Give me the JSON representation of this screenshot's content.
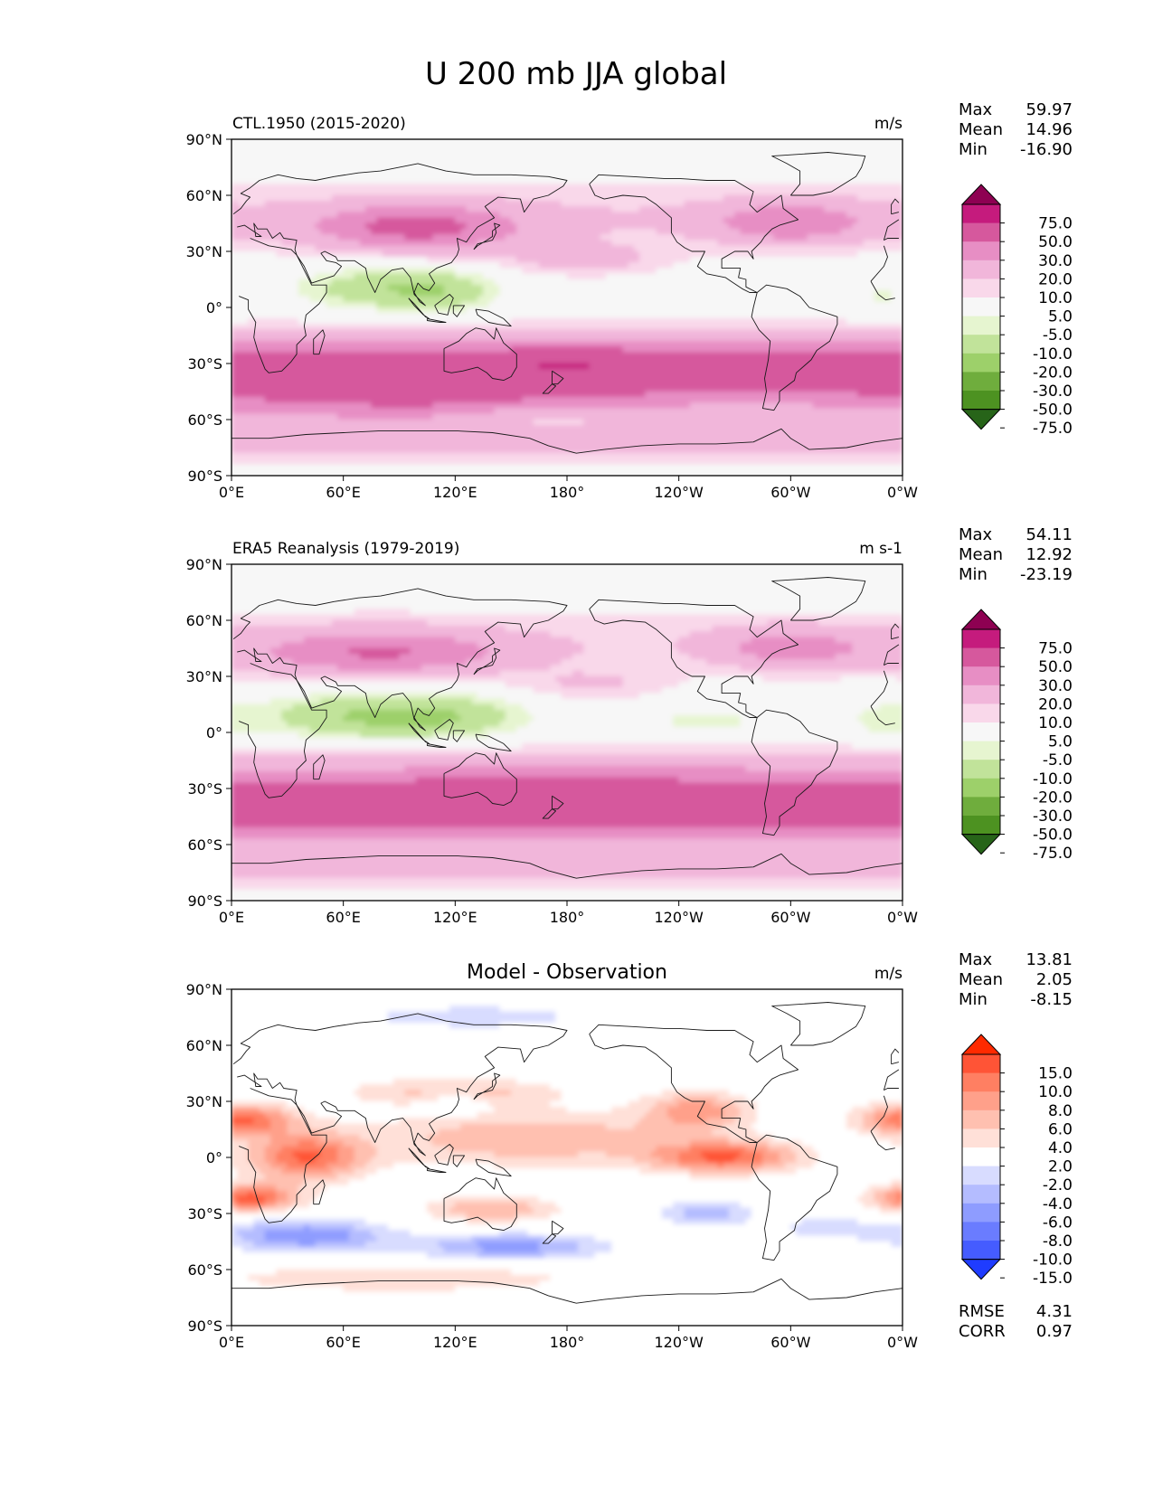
{
  "title": "U 200 mb JJA global",
  "lat_ticks": [
    "90°N",
    "60°N",
    "30°N",
    "0°",
    "30°S",
    "60°S",
    "90°S"
  ],
  "lon_ticks": [
    "0°E",
    "60°E",
    "120°E",
    "180°",
    "120°W",
    "60°W",
    "0°W"
  ],
  "chart_data": [
    {
      "type": "heatmap",
      "title": "CTL.1950 (2015-2020)",
      "units": "m/s",
      "field": "model",
      "stats": [
        {
          "label": "Max",
          "value": "59.97"
        },
        {
          "label": "Mean",
          "value": "14.96"
        },
        {
          "label": "Min",
          "value": "-16.90"
        }
      ],
      "colorbar": {
        "labels": [
          "75.0",
          "50.0",
          "30.0",
          "20.0",
          "10.0",
          "5.0",
          "-5.0",
          "-10.0",
          "-20.0",
          "-30.0",
          "-50.0",
          "-75.0"
        ],
        "colors": [
          "#8e0152",
          "#c51b7d",
          "#d6589d",
          "#e78ec4",
          "#f1b6da",
          "#f9d8ea",
          "#f7f7f7",
          "#e6f5d0",
          "#c1e39a",
          "#9dd06a",
          "#6fad3d",
          "#4d9221",
          "#276419"
        ]
      },
      "xlim": [
        0,
        360
      ],
      "ylim": [
        -90,
        90
      ]
    },
    {
      "type": "heatmap",
      "title": "ERA5 Reanalysis (1979-2019)",
      "units": "m s-1",
      "field": "obs",
      "stats": [
        {
          "label": "Max",
          "value": "54.11"
        },
        {
          "label": "Mean",
          "value": "12.92"
        },
        {
          "label": "Min",
          "value": "-23.19"
        }
      ],
      "colorbar": {
        "labels": [
          "75.0",
          "50.0",
          "30.0",
          "20.0",
          "10.0",
          "5.0",
          "-5.0",
          "-10.0",
          "-20.0",
          "-30.0",
          "-50.0",
          "-75.0"
        ],
        "colors": [
          "#8e0152",
          "#c51b7d",
          "#d6589d",
          "#e78ec4",
          "#f1b6da",
          "#f9d8ea",
          "#f7f7f7",
          "#e6f5d0",
          "#c1e39a",
          "#9dd06a",
          "#6fad3d",
          "#4d9221",
          "#276419"
        ]
      },
      "xlim": [
        0,
        360
      ],
      "ylim": [
        -90,
        90
      ]
    },
    {
      "type": "heatmap",
      "title": "Model - Observation",
      "units": "m/s",
      "field": "diff",
      "stats": [
        {
          "label": "Max",
          "value": "13.81"
        },
        {
          "label": "Mean",
          "value": "2.05"
        },
        {
          "label": "Min",
          "value": "-8.15"
        }
      ],
      "extra_stats": [
        {
          "label": "RMSE",
          "value": "4.31"
        },
        {
          "label": "CORR",
          "value": "0.97"
        }
      ],
      "colorbar": {
        "labels": [
          "15.0",
          "10.0",
          "8.0",
          "6.0",
          "4.0",
          "2.0",
          "-2.0",
          "-4.0",
          "-6.0",
          "-8.0",
          "-10.0",
          "-15.0"
        ],
        "colors": [
          "#ff2a00",
          "#ff5436",
          "#ff7f62",
          "#ffa08a",
          "#ffc0b0",
          "#ffe0d8",
          "#ffffff",
          "#d8dcff",
          "#b4bcff",
          "#8e9cff",
          "#6a7cff",
          "#455cff",
          "#1f3cff"
        ]
      },
      "xlim": [
        0,
        360
      ],
      "ylim": [
        -90,
        90
      ]
    }
  ]
}
